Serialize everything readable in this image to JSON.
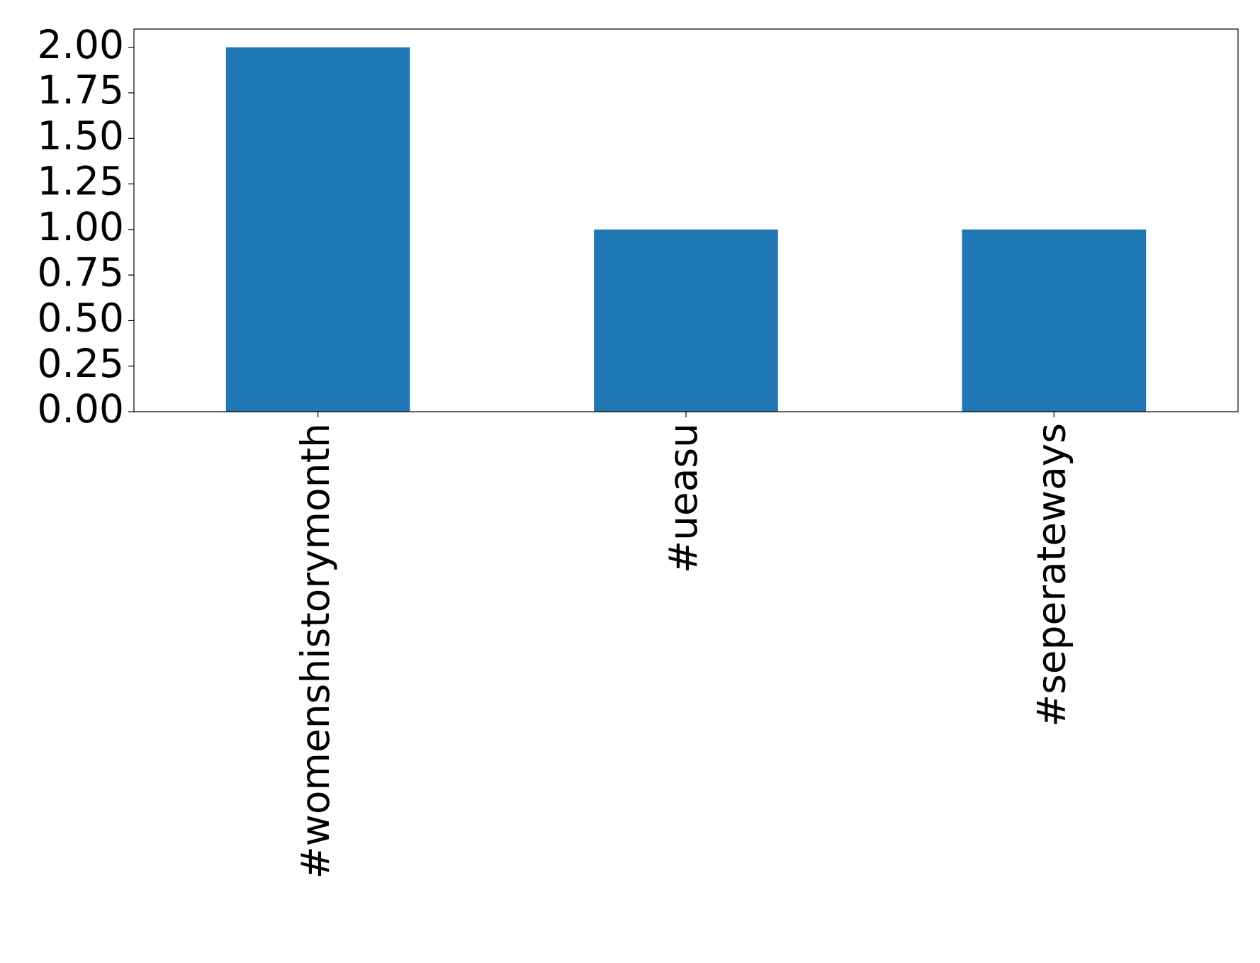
{
  "chart_data": {
    "type": "bar",
    "categories": [
      "#womenshistorymonth",
      "#ueasu",
      "#seperateways"
    ],
    "values": [
      2,
      1,
      1
    ],
    "color": "#1f77b4",
    "ylim": [
      0,
      2.1
    ],
    "yticks": [
      {
        "value": 0,
        "label": "0.00"
      },
      {
        "value": 0.25,
        "label": "0.25"
      },
      {
        "value": 0.5,
        "label": "0.50"
      },
      {
        "value": 0.75,
        "label": "0.75"
      },
      {
        "value": 1,
        "label": "1.00"
      },
      {
        "value": 1.25,
        "label": "1.25"
      },
      {
        "value": 1.5,
        "label": "1.50"
      },
      {
        "value": 1.75,
        "label": "1.75"
      },
      {
        "value": 2,
        "label": "2.00"
      }
    ],
    "grid": false
  }
}
